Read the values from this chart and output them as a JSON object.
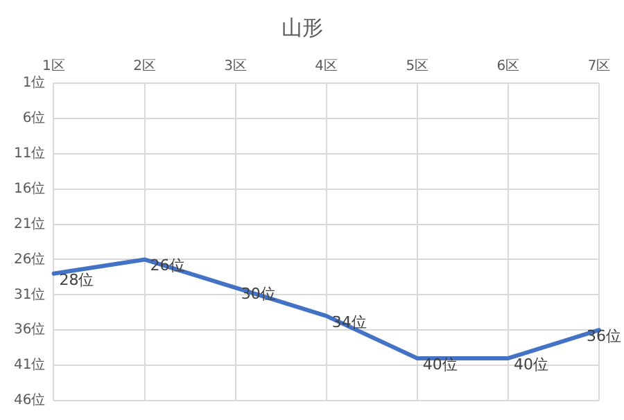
{
  "chart_data": {
    "type": "line",
    "title": "山形",
    "categories": [
      "1区",
      "2区",
      "3区",
      "4区",
      "5区",
      "6区",
      "7区"
    ],
    "series": [
      {
        "color": "#4472c4",
        "values": [
          28,
          26,
          30,
          34,
          40,
          40,
          36
        ],
        "value_labels": [
          "28位",
          "26位",
          "30位",
          "34位",
          "40位",
          "40位",
          "36位"
        ]
      }
    ],
    "ylim": [
      46,
      1
    ],
    "yticks": [
      {
        "value": 1,
        "label": "1位"
      },
      {
        "value": 6,
        "label": "6位"
      },
      {
        "value": 11,
        "label": "11位"
      },
      {
        "value": 16,
        "label": "16位"
      },
      {
        "value": 21,
        "label": "21位"
      },
      {
        "value": 26,
        "label": "26位"
      },
      {
        "value": 31,
        "label": "31位"
      },
      {
        "value": 36,
        "label": "36位"
      },
      {
        "value": 41,
        "label": "41位"
      },
      {
        "value": 46,
        "label": "46位"
      }
    ],
    "grid": true,
    "marker": "none",
    "line_style": "solid",
    "legend": false
  }
}
